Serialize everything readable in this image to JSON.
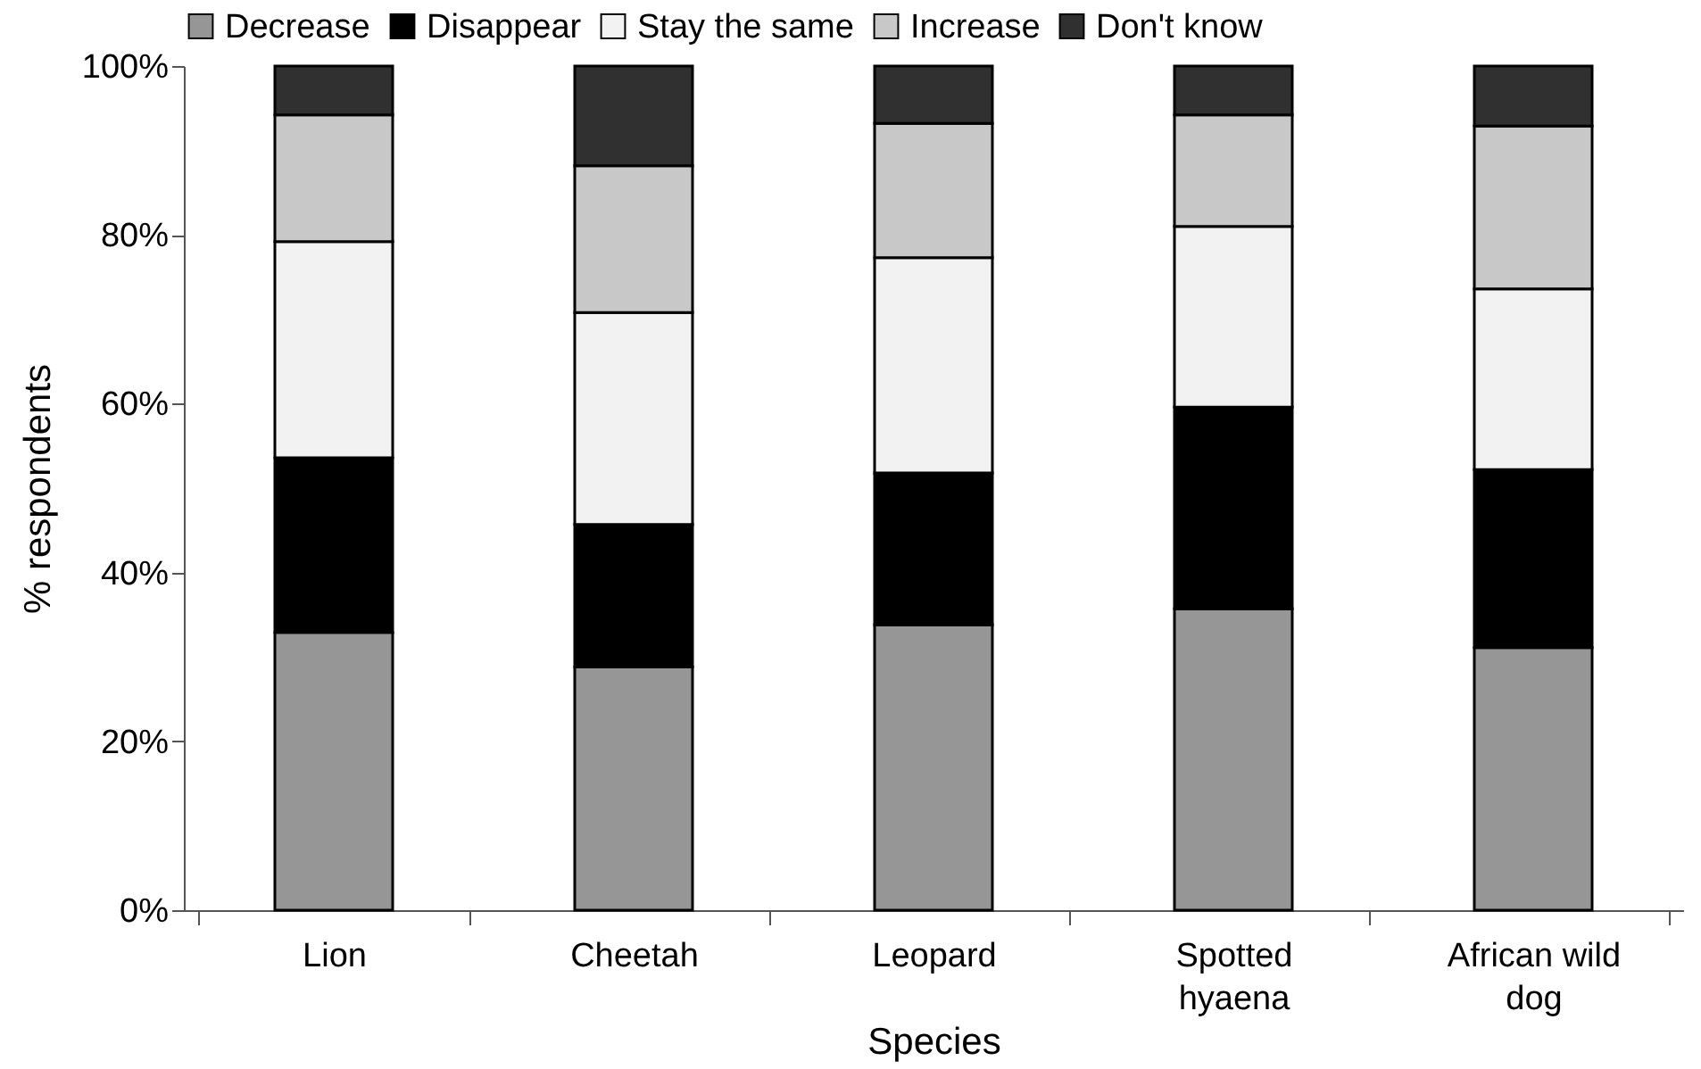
{
  "chart_data": {
    "type": "bar",
    "stacked": true,
    "xlabel": "Species",
    "ylabel": "% respondents",
    "categories": [
      "Lion",
      "Cheetah",
      "Leopard",
      "Spotted\nhyaena",
      "African wild\ndog"
    ],
    "series": [
      {
        "name": "Decrease",
        "color": "#969696",
        "values": [
          32.9,
          28.8,
          33.8,
          35.7,
          31.1
        ]
      },
      {
        "name": "Disappear",
        "color": "#000000",
        "values": [
          20.7,
          16.9,
          18.0,
          23.9,
          21.1
        ]
      },
      {
        "name": "Stay the same",
        "color": "#f2f2f2",
        "values": [
          25.6,
          25.1,
          25.5,
          21.4,
          21.4
        ]
      },
      {
        "name": "Increase",
        "color": "#c8c8c8",
        "values": [
          15.0,
          17.4,
          15.9,
          13.2,
          19.3
        ]
      },
      {
        "name": "Don't know",
        "color": "#303030",
        "values": [
          5.8,
          11.8,
          6.8,
          5.8,
          7.1
        ]
      }
    ],
    "ylim": [
      0,
      100
    ],
    "yticks": [
      {
        "value": 0,
        "label": "0%"
      },
      {
        "value": 20,
        "label": "20%"
      },
      {
        "value": 40,
        "label": "40%"
      },
      {
        "value": 60,
        "label": "60%"
      },
      {
        "value": 80,
        "label": "80%"
      },
      {
        "value": 100,
        "label": "100%"
      }
    ],
    "grid": false,
    "legend": "top"
  }
}
